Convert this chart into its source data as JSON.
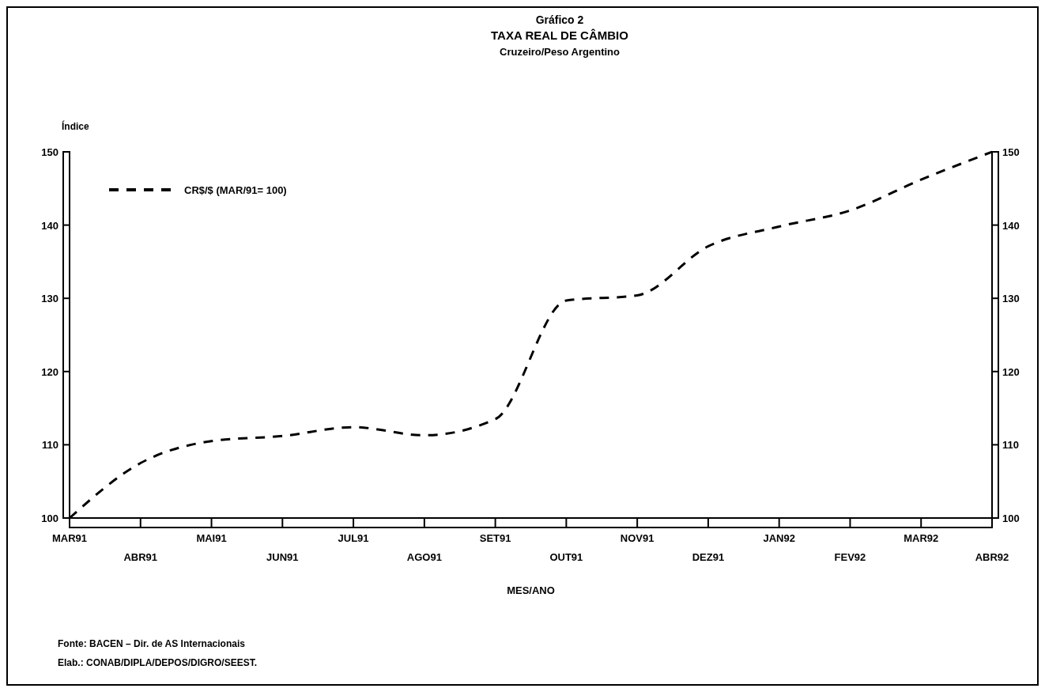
{
  "chart_data": {
    "type": "line",
    "title": "Gráfico 2",
    "subtitle": "TAXA REAL DE CÂMBIO\nCruzeiro/Peso Argentino",
    "ylabel": "Índice",
    "xlabel": "MES/ANO",
    "categories": [
      "MAR91",
      "ABR91",
      "MAI91",
      "JUN91",
      "JUL91",
      "AGO91",
      "SET91",
      "OUT91",
      "NOV91",
      "DEZ91",
      "JAN92",
      "FEV92",
      "MAR92",
      "ABR92"
    ],
    "series": [
      {
        "name": "CR$/$ (MAR/91= 100)",
        "color": "#000000",
        "values": [
          100,
          107.5,
          110.5,
          111.2,
          112.4,
          111.3,
          113.5,
          129.7,
          130.4,
          137.1,
          139.8,
          142,
          146.2,
          150
        ]
      }
    ],
    "ylim": [
      100,
      150
    ],
    "yticks": [
      100,
      110,
      120,
      130,
      140,
      150
    ],
    "y2lim": [
      100,
      150
    ],
    "y2ticks": [
      100,
      110,
      120,
      130,
      140,
      150
    ],
    "legend": "top left",
    "line_style": "dashed",
    "marker": "none",
    "grid": false,
    "annotations": [
      "Fonte: BACEN – Dir. de AS Internacionais",
      "Elab.: CONAB/DIPLA/DEPOS/DIGRO/SEEST."
    ]
  }
}
